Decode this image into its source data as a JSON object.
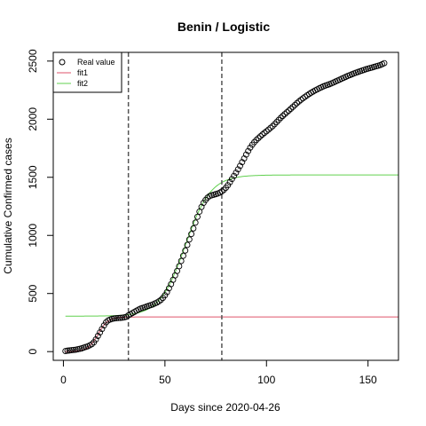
{
  "chart_data": {
    "type": "scatter",
    "title": "Benin / Logistic",
    "xlabel": "Days since 2020-04-26",
    "ylabel": "Cumulative Confirmed cases",
    "xlim": [
      -5,
      165
    ],
    "ylim": [
      -75,
      2575
    ],
    "x_ticks": [
      0,
      50,
      100,
      150
    ],
    "y_ticks": [
      0,
      500,
      1000,
      1500,
      2000,
      2500
    ],
    "vlines": [
      32,
      78
    ],
    "legend": {
      "position": "top-left",
      "entries": [
        {
          "label": "Real value",
          "marker": "circle",
          "color": "#000000"
        },
        {
          "label": "fit1",
          "marker": "line",
          "color": "#DF536B"
        },
        {
          "label": "fit2",
          "marker": "line",
          "color": "#61D04F"
        }
      ]
    },
    "series": [
      {
        "name": "Real value",
        "points": [
          [
            1,
            5
          ],
          [
            2,
            8
          ],
          [
            3,
            10
          ],
          [
            4,
            12
          ],
          [
            5,
            14
          ],
          [
            6,
            16
          ],
          [
            7,
            20
          ],
          [
            8,
            24
          ],
          [
            9,
            28
          ],
          [
            10,
            34
          ],
          [
            11,
            40
          ],
          [
            12,
            46
          ],
          [
            13,
            54
          ],
          [
            14,
            64
          ],
          [
            15,
            80
          ],
          [
            16,
            105
          ],
          [
            17,
            135
          ],
          [
            18,
            165
          ],
          [
            19,
            195
          ],
          [
            20,
            225
          ],
          [
            21,
            252
          ],
          [
            22,
            268
          ],
          [
            23,
            276
          ],
          [
            24,
            282
          ],
          [
            25,
            285
          ],
          [
            26,
            287
          ],
          [
            27,
            289
          ],
          [
            28,
            290
          ],
          [
            29,
            292
          ],
          [
            30,
            295
          ],
          [
            31,
            300
          ],
          [
            32,
            312
          ],
          [
            33,
            322
          ],
          [
            34,
            332
          ],
          [
            35,
            342
          ],
          [
            36,
            352
          ],
          [
            37,
            362
          ],
          [
            38,
            370
          ],
          [
            39,
            376
          ],
          [
            40,
            382
          ],
          [
            41,
            388
          ],
          [
            42,
            394
          ],
          [
            43,
            400
          ],
          [
            44,
            406
          ],
          [
            45,
            414
          ],
          [
            46,
            422
          ],
          [
            47,
            432
          ],
          [
            48,
            445
          ],
          [
            49,
            462
          ],
          [
            50,
            485
          ],
          [
            51,
            512
          ],
          [
            52,
            545
          ],
          [
            53,
            580
          ],
          [
            54,
            618
          ],
          [
            55,
            656
          ],
          [
            56,
            694
          ],
          [
            57,
            735
          ],
          [
            58,
            780
          ],
          [
            59,
            825
          ],
          [
            60,
            870
          ],
          [
            61,
            918
          ],
          [
            62,
            965
          ],
          [
            63,
            1012
          ],
          [
            64,
            1060
          ],
          [
            65,
            1110
          ],
          [
            66,
            1160
          ],
          [
            67,
            1205
          ],
          [
            68,
            1245
          ],
          [
            69,
            1280
          ],
          [
            70,
            1305
          ],
          [
            71,
            1325
          ],
          [
            72,
            1338
          ],
          [
            73,
            1345
          ],
          [
            74,
            1350
          ],
          [
            75,
            1355
          ],
          [
            76,
            1360
          ],
          [
            77,
            1368
          ],
          [
            78,
            1378
          ],
          [
            79,
            1392
          ],
          [
            80,
            1410
          ],
          [
            81,
            1432
          ],
          [
            82,
            1458
          ],
          [
            83,
            1485
          ],
          [
            84,
            1512
          ],
          [
            85,
            1540
          ],
          [
            86,
            1568
          ],
          [
            87,
            1598
          ],
          [
            88,
            1630
          ],
          [
            89,
            1662
          ],
          [
            90,
            1695
          ],
          [
            91,
            1726
          ],
          [
            92,
            1755
          ],
          [
            93,
            1780
          ],
          [
            94,
            1802
          ],
          [
            95,
            1820
          ],
          [
            96,
            1837
          ],
          [
            97,
            1853
          ],
          [
            98,
            1868
          ],
          [
            99,
            1882
          ],
          [
            100,
            1896
          ],
          [
            101,
            1910
          ],
          [
            102,
            1925
          ],
          [
            103,
            1940
          ],
          [
            104,
            1957
          ],
          [
            105,
            1975
          ],
          [
            106,
            1993
          ],
          [
            107,
            2011
          ],
          [
            108,
            2028
          ],
          [
            109,
            2044
          ],
          [
            110,
            2059
          ],
          [
            111,
            2074
          ],
          [
            112,
            2090
          ],
          [
            113,
            2106
          ],
          [
            114,
            2122
          ],
          [
            115,
            2138
          ],
          [
            116,
            2153
          ],
          [
            117,
            2167
          ],
          [
            118,
            2180
          ],
          [
            119,
            2193
          ],
          [
            120,
            2205
          ],
          [
            121,
            2217
          ],
          [
            122,
            2228
          ],
          [
            123,
            2238
          ],
          [
            124,
            2248
          ],
          [
            125,
            2257
          ],
          [
            126,
            2266
          ],
          [
            127,
            2274
          ],
          [
            128,
            2282
          ],
          [
            129,
            2289
          ],
          [
            130,
            2295
          ],
          [
            131,
            2301
          ],
          [
            132,
            2308
          ],
          [
            133,
            2316
          ],
          [
            134,
            2324
          ],
          [
            135,
            2332
          ],
          [
            136,
            2340
          ],
          [
            137,
            2348
          ],
          [
            138,
            2356
          ],
          [
            139,
            2364
          ],
          [
            140,
            2372
          ],
          [
            141,
            2379
          ],
          [
            142,
            2386
          ],
          [
            143,
            2393
          ],
          [
            144,
            2400
          ],
          [
            145,
            2406
          ],
          [
            146,
            2412
          ],
          [
            147,
            2418
          ],
          [
            148,
            2424
          ],
          [
            149,
            2430
          ],
          [
            150,
            2435
          ],
          [
            151,
            2440
          ],
          [
            152,
            2445
          ],
          [
            153,
            2450
          ],
          [
            154,
            2455
          ],
          [
            155,
            2460
          ],
          [
            156,
            2466
          ],
          [
            157,
            2473
          ],
          [
            158,
            2482
          ]
        ]
      },
      {
        "name": "fit1",
        "curve": {
          "kind": "logistic",
          "K": 298,
          "r": 0.4,
          "t0": 17
        },
        "x_range": [
          1,
          165
        ]
      },
      {
        "name": "fit2",
        "curve": {
          "kind": "logistic_offset",
          "base": 305,
          "K": 1215,
          "r": 0.16,
          "t0": 60
        },
        "x_range": [
          1,
          165
        ]
      }
    ]
  }
}
